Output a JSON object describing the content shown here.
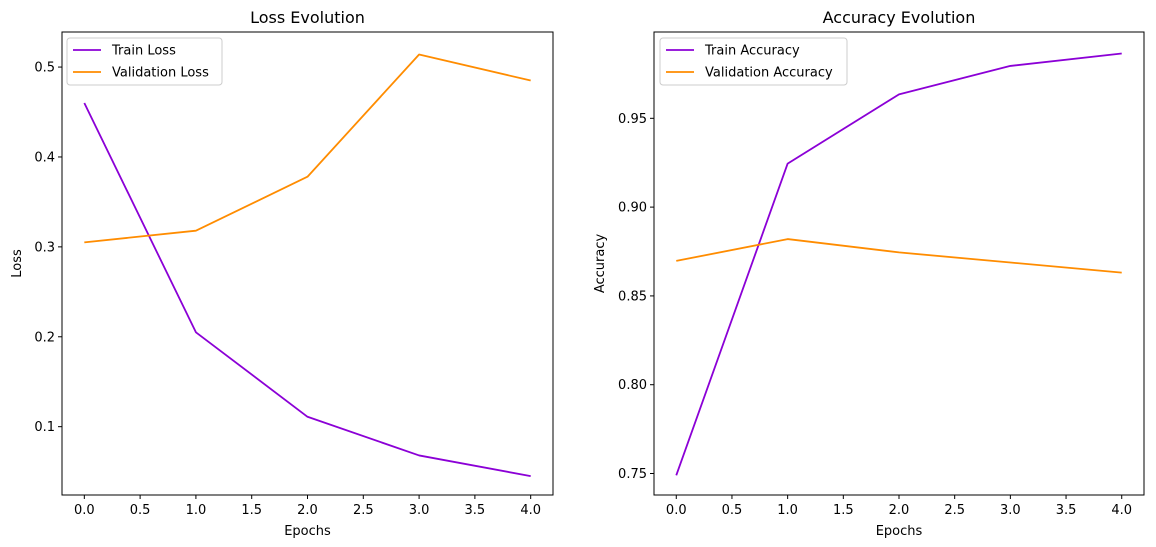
{
  "chart_data": [
    {
      "type": "line",
      "title": "Loss Evolution",
      "xlabel": "Epochs",
      "ylabel": "Loss",
      "x": [
        0,
        1,
        2,
        3,
        4
      ],
      "series": [
        {
          "name": "Train Loss",
          "color": "#8B00D6",
          "values": [
            0.46,
            0.205,
            0.111,
            0.068,
            0.045
          ]
        },
        {
          "name": "Validation Loss",
          "color": "#FF8C00",
          "values": [
            0.305,
            0.318,
            0.378,
            0.514,
            0.485
          ]
        }
      ],
      "xlim": [
        -0.2,
        4.2
      ],
      "ylim": [
        0.024,
        0.539
      ],
      "xticks": [
        0.0,
        0.5,
        1.0,
        1.5,
        2.0,
        2.5,
        3.0,
        3.5,
        4.0
      ],
      "xtick_labels": [
        "0.0",
        "0.5",
        "1.0",
        "1.5",
        "2.0",
        "2.5",
        "3.0",
        "3.5",
        "4.0"
      ],
      "yticks": [
        0.1,
        0.2,
        0.3,
        0.4,
        0.5
      ],
      "ytick_labels": [
        "0.1",
        "0.2",
        "0.3",
        "0.4",
        "0.5"
      ],
      "grid": false,
      "legend": "top-left"
    },
    {
      "type": "line",
      "title": "Accuracy Evolution",
      "xlabel": "Epochs",
      "ylabel": "Accuracy",
      "x": [
        0,
        1,
        2,
        3,
        4
      ],
      "series": [
        {
          "name": "Train Accuracy",
          "color": "#8B00D6",
          "values": [
            0.749,
            0.9245,
            0.9635,
            0.9795,
            0.9865
          ]
        },
        {
          "name": "Validation Accuracy",
          "color": "#FF8C00",
          "values": [
            0.8697,
            0.882,
            0.8745,
            0.8688,
            0.8631
          ]
        }
      ],
      "xlim": [
        -0.2,
        4.2
      ],
      "ylim": [
        0.7379,
        0.9986
      ],
      "xticks": [
        0.0,
        0.5,
        1.0,
        1.5,
        2.0,
        2.5,
        3.0,
        3.5,
        4.0
      ],
      "xtick_labels": [
        "0.0",
        "0.5",
        "1.0",
        "1.5",
        "2.0",
        "2.5",
        "3.0",
        "3.5",
        "4.0"
      ],
      "yticks": [
        0.75,
        0.8,
        0.85,
        0.9,
        0.95
      ],
      "ytick_labels": [
        "0.75",
        "0.80",
        "0.85",
        "0.90",
        "0.95"
      ],
      "grid": false,
      "legend": "top-left"
    }
  ]
}
